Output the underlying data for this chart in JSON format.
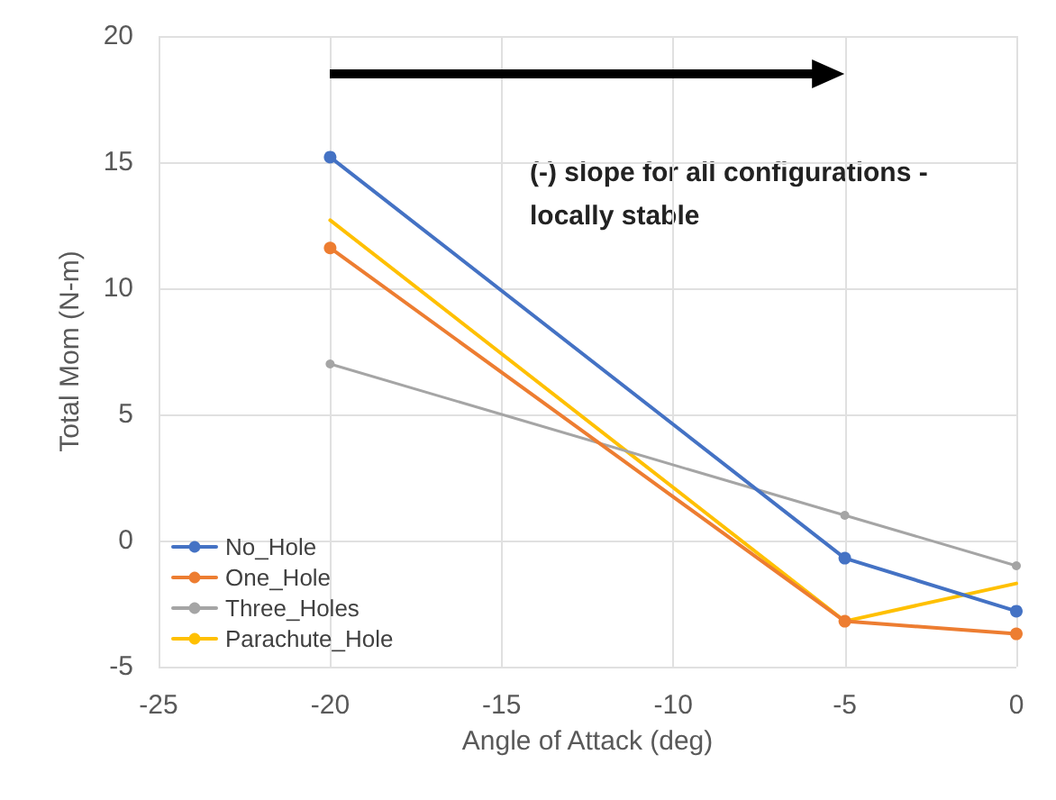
{
  "chart_data": {
    "type": "line",
    "xlabel": "Angle of Attack (deg)",
    "ylabel": "Total Mom (N-m)",
    "x": [
      -20,
      -5,
      0
    ],
    "series": [
      {
        "name": "No_Hole",
        "color": "#4472c4",
        "marker": "circle",
        "values": [
          15.2,
          -0.7,
          -2.8
        ]
      },
      {
        "name": "One_Hole",
        "color": "#ed7d31",
        "marker": "circle",
        "values": [
          11.6,
          -3.2,
          -3.7
        ]
      },
      {
        "name": "Three_Holes",
        "color": "#a5a5a5",
        "marker": "circle",
        "values": [
          7.0,
          1.0,
          -1.0
        ]
      },
      {
        "name": "Parachute_Hole",
        "color": "#ffc000",
        "marker": "none",
        "values": [
          12.7,
          -3.2,
          -1.7
        ]
      }
    ],
    "xlim": [
      -25,
      0
    ],
    "xticks": [
      -25,
      -20,
      -15,
      -10,
      -5,
      0
    ],
    "ylim": [
      -5,
      20
    ],
    "yticks": [
      -5,
      0,
      5,
      10,
      15,
      20
    ],
    "grid": true,
    "legend": "bottom left",
    "annotations": [
      "(-) slope for all configurations - locally stable"
    ]
  }
}
